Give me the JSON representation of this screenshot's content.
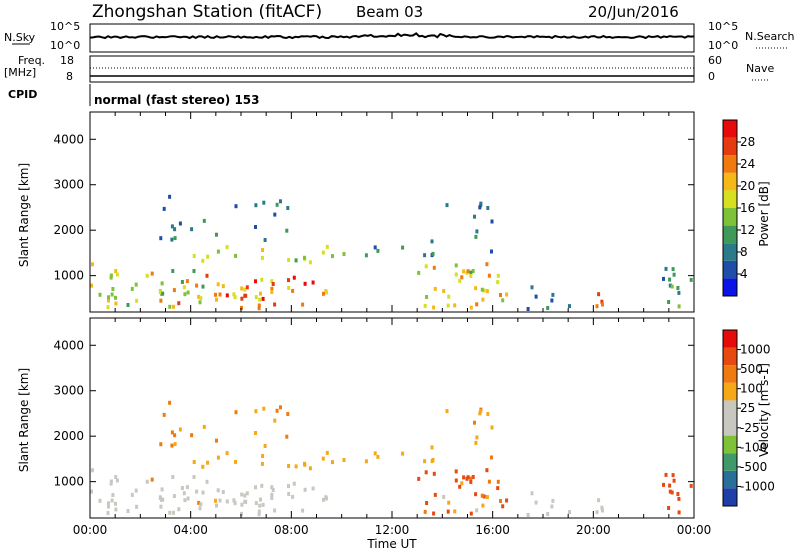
{
  "header": {
    "station": "Zhongshan Station (fitACF)",
    "beam": "Beam 03",
    "date": "20/Jun/2016"
  },
  "top_panels": {
    "nsky_label": "N.Sky",
    "nsearch_label": "N.Search",
    "left_ticks_nsky": [
      "10^5",
      "10^0"
    ],
    "right_ticks_nsearch": [
      "10^5",
      "10^0"
    ],
    "freq_label": [
      "Freq.",
      "[MHz]"
    ],
    "freq_ticks": [
      "18",
      "8"
    ],
    "nave_ticks": [
      "60",
      "0"
    ],
    "nave_label": "Nave",
    "cpid_label": "CPID",
    "cpid_text": "normal (fast stereo) 153"
  },
  "colorbars": {
    "power": {
      "label": "Power [dB]",
      "ticks": [
        "28",
        "24",
        "20",
        "16",
        "12",
        "8",
        "4"
      ],
      "colors": [
        "#0a14e6",
        "#1f4ea8",
        "#2a7a8a",
        "#3f9a5a",
        "#7ec23a",
        "#d6e020",
        "#f5b818",
        "#f07a10",
        "#e63b10",
        "#e60a0a"
      ]
    },
    "velocity": {
      "label": "Velocity [m s-1]",
      "ticks": [
        "1000",
        "500",
        "100",
        "25",
        "-25",
        "-100",
        "-500",
        "-1000"
      ],
      "colors": [
        "#1f3ea8",
        "#2a6f9a",
        "#3f9a6a",
        "#7ec23a",
        "#c8c8c0",
        "#c8c8c0",
        "#f5a818",
        "#f07a10",
        "#e64a10",
        "#e60a0a"
      ]
    }
  },
  "chart_data": [
    {
      "type": "heatmap",
      "name": "power",
      "xlabel": "",
      "ylabel": "Slant Range [km]",
      "ylim": [
        200,
        4600
      ],
      "yticks": [
        1000,
        2000,
        3000,
        4000
      ],
      "xlim": [
        0,
        24
      ],
      "value_label": "Power [dB]",
      "value_range": [
        0,
        32
      ]
    },
    {
      "type": "heatmap",
      "name": "velocity",
      "xlabel": "Time UT",
      "ylabel": "Slant Range [km]",
      "ylim": [
        200,
        4600
      ],
      "yticks": [
        1000,
        2000,
        3000,
        4000
      ],
      "xlim": [
        0,
        24
      ],
      "xticks": [
        "00:00",
        "04:00",
        "08:00",
        "12:00",
        "16:00",
        "20:00",
        "00:00"
      ],
      "value_label": "Velocity [m s-1]",
      "value_range": [
        -1000,
        1000
      ]
    }
  ]
}
